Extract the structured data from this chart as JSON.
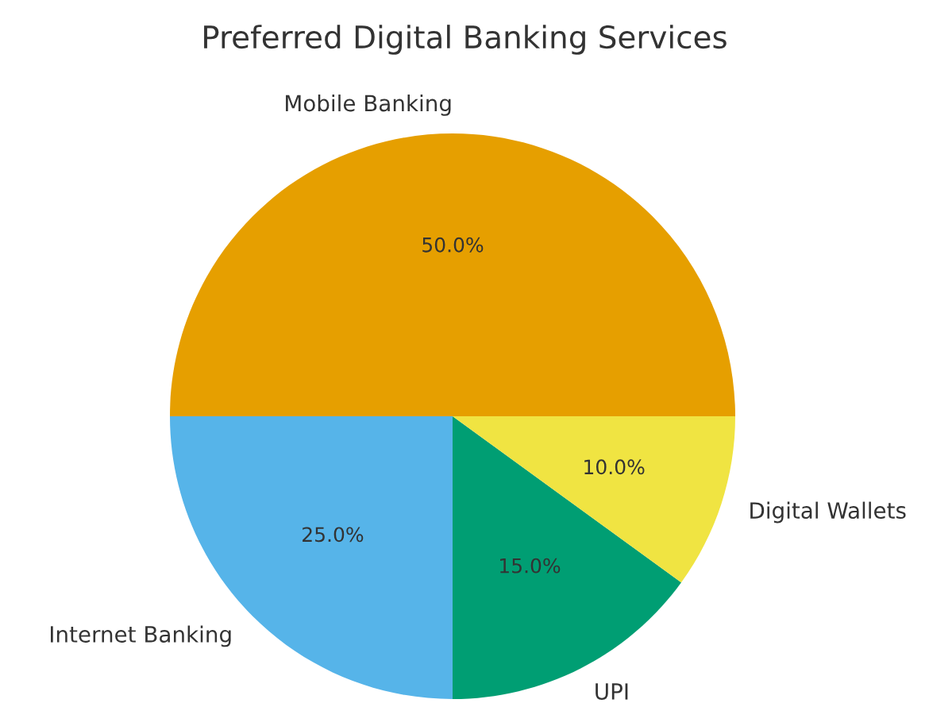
{
  "chart_data": {
    "type": "pie",
    "title": "Preferred Digital Banking Services",
    "categories": [
      "Mobile Banking",
      "Internet Banking",
      "UPI",
      "Digital Wallets"
    ],
    "values": [
      50,
      25,
      15,
      10
    ],
    "value_labels": [
      "50.0%",
      "25.0%",
      "15.0%",
      "10.0%"
    ],
    "colors": [
      "#e69f00",
      "#56b4e9",
      "#009e73",
      "#f0e442"
    ]
  }
}
